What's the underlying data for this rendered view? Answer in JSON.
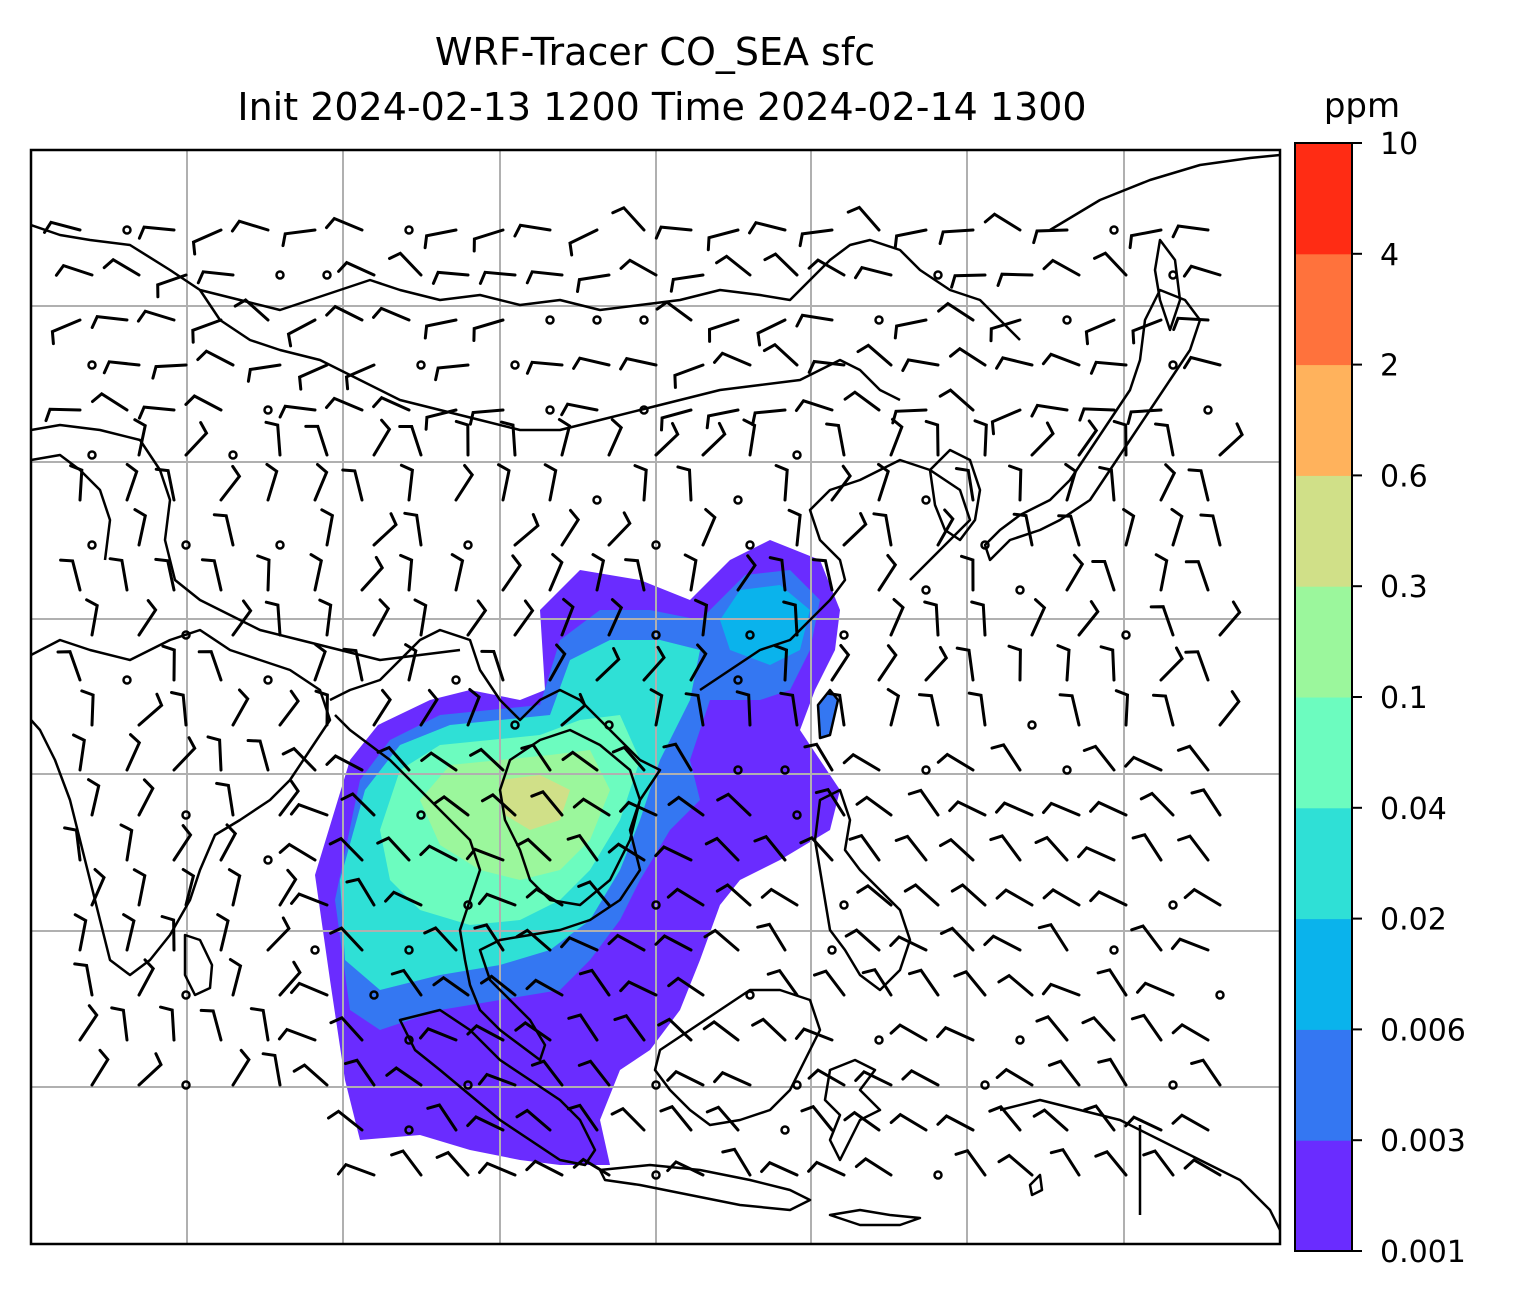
{
  "title": {
    "line1": "WRF-Tracer CO_SEA sfc",
    "line2": "Init 2024-02-13 1200 Time 2024-02-14 1300"
  },
  "colorbar": {
    "unit": "ppm",
    "levels": [
      "0.001",
      "0.003",
      "0.006",
      "0.02",
      "0.04",
      "0.1",
      "0.3",
      "0.6",
      "2",
      "4",
      "10"
    ],
    "colors": [
      "#6a2cff",
      "#3477f2",
      "#0ab3ec",
      "#2fe0d6",
      "#6cfcbf",
      "#9bf79c",
      "#d0e088",
      "#ffb25c",
      "#ff723c",
      "#ff2c14"
    ]
  },
  "map": {
    "coastline_color": "#000000",
    "gridline_color": "#b0b0b0",
    "barb_color": "#000000"
  }
}
